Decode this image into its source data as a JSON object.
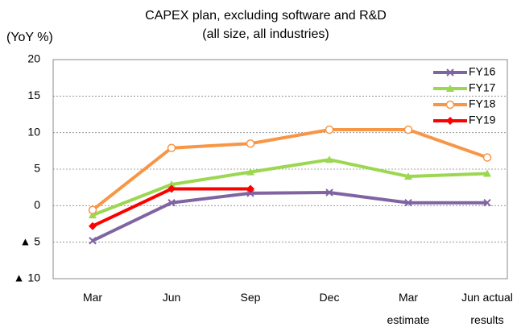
{
  "chart_data": {
    "type": "line",
    "title": "CAPEX plan, excluding software and R&D",
    "subtitle": "(all size, all industries)",
    "y_label": "(YoY %)",
    "categories": [
      "Mar",
      "Jun",
      "Sep",
      "Dec",
      "Mar\nestimate",
      "Jun actual\nresults"
    ],
    "series": [
      {
        "name": "FY16",
        "color": "#8064a2",
        "marker": "x",
        "values": [
          -4.8,
          0.4,
          1.7,
          1.8,
          0.4,
          0.4
        ]
      },
      {
        "name": "FY17",
        "color": "#9bd750",
        "marker": "triangle",
        "values": [
          -1.3,
          2.9,
          4.6,
          6.3,
          4.0,
          4.4
        ]
      },
      {
        "name": "FY18",
        "color": "#f79646",
        "marker": "open-circle",
        "values": [
          -0.6,
          7.9,
          8.5,
          10.4,
          10.4,
          6.6
        ]
      },
      {
        "name": "FY19",
        "color": "#ff0000",
        "marker": "diamond",
        "values": [
          -2.8,
          2.3,
          2.3,
          null,
          null,
          null
        ]
      }
    ],
    "ylim": [
      -10,
      20
    ],
    "yticks": [
      {
        "value": -10,
        "label": "▲ 10"
      },
      {
        "value": -5,
        "label": "▲ 5"
      },
      0,
      5,
      10,
      15,
      20
    ],
    "grid": true,
    "legend": "upper right"
  }
}
